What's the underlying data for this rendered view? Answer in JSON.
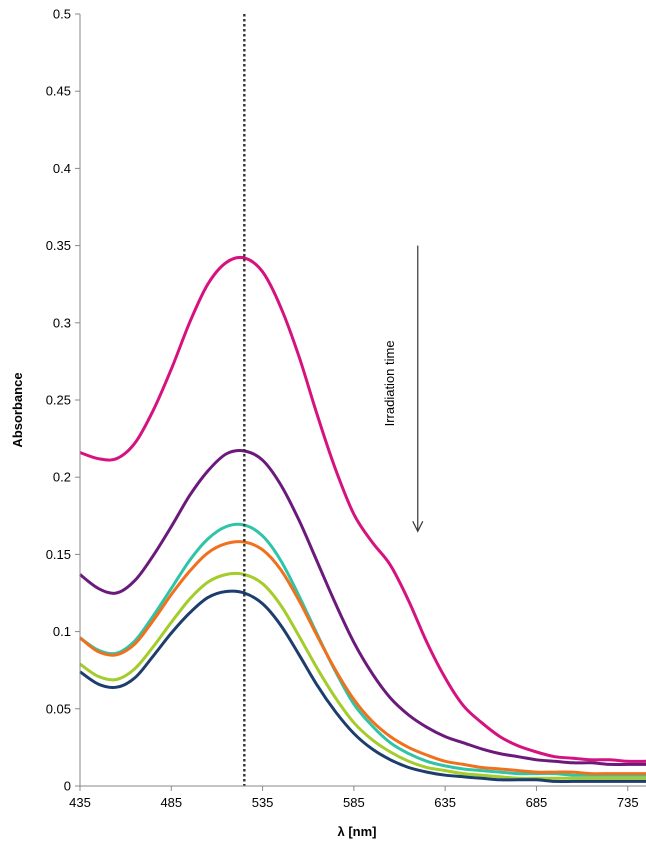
{
  "chart_data": {
    "type": "line",
    "xlabel": "λ [nm]",
    "ylabel": "Absorbance",
    "xlim": [
      435,
      745
    ],
    "ylim": [
      0,
      0.5
    ],
    "x_ticks": [
      435,
      485,
      535,
      585,
      635,
      685,
      735
    ],
    "x_tick_labels": [
      "435",
      "485",
      "535",
      "585",
      "635",
      "685",
      "735"
    ],
    "y_ticks": [
      0,
      0.05,
      0.1,
      0.15,
      0.2,
      0.25,
      0.3,
      0.35,
      0.4,
      0.45,
      0.5
    ],
    "y_tick_labels": [
      "0",
      "0.05",
      "0.1",
      "0.15",
      "0.2",
      "0.25",
      "0.3",
      "0.35",
      "0.4",
      "0.45",
      "0.5"
    ],
    "grid": false,
    "legend": "none",
    "reference_line": {
      "x": 525,
      "style": "dotted",
      "color": "#333333"
    },
    "annotation": {
      "text": "Irradiation time",
      "arrow": {
        "x": 620,
        "y_from": 0.35,
        "y_to": 0.165
      }
    },
    "x": [
      435,
      445,
      455,
      465,
      475,
      485,
      495,
      505,
      515,
      525,
      535,
      545,
      555,
      565,
      575,
      585,
      595,
      605,
      615,
      625,
      635,
      645,
      655,
      665,
      675,
      685,
      695,
      705,
      715,
      725,
      735,
      745
    ],
    "series": [
      {
        "color": "#d6127f",
        "values": [
          0.216,
          0.212,
          0.212,
          0.222,
          0.243,
          0.27,
          0.3,
          0.325,
          0.339,
          0.342,
          0.333,
          0.31,
          0.278,
          0.24,
          0.205,
          0.176,
          0.158,
          0.143,
          0.12,
          0.093,
          0.07,
          0.052,
          0.041,
          0.032,
          0.026,
          0.022,
          0.019,
          0.018,
          0.017,
          0.017,
          0.016,
          0.016
        ]
      },
      {
        "color": "#6b1a7c",
        "values": [
          0.137,
          0.128,
          0.125,
          0.133,
          0.149,
          0.168,
          0.188,
          0.204,
          0.215,
          0.217,
          0.211,
          0.195,
          0.172,
          0.145,
          0.118,
          0.093,
          0.073,
          0.057,
          0.046,
          0.038,
          0.032,
          0.028,
          0.024,
          0.021,
          0.019,
          0.017,
          0.016,
          0.015,
          0.015,
          0.014,
          0.014,
          0.014
        ]
      },
      {
        "color": "#2ec4a8",
        "values": [
          0.096,
          0.088,
          0.086,
          0.094,
          0.11,
          0.128,
          0.146,
          0.16,
          0.168,
          0.169,
          0.162,
          0.146,
          0.123,
          0.098,
          0.074,
          0.053,
          0.039,
          0.028,
          0.021,
          0.016,
          0.013,
          0.011,
          0.01,
          0.009,
          0.008,
          0.008,
          0.008,
          0.007,
          0.007,
          0.007,
          0.007,
          0.007
        ]
      },
      {
        "color": "#f0701e",
        "values": [
          0.096,
          0.087,
          0.085,
          0.092,
          0.107,
          0.124,
          0.139,
          0.151,
          0.157,
          0.158,
          0.153,
          0.14,
          0.12,
          0.097,
          0.075,
          0.056,
          0.042,
          0.032,
          0.025,
          0.02,
          0.016,
          0.014,
          0.012,
          0.011,
          0.01,
          0.009,
          0.009,
          0.009,
          0.008,
          0.008,
          0.008,
          0.008
        ]
      },
      {
        "color": "#a4cc2a",
        "values": [
          0.079,
          0.071,
          0.069,
          0.076,
          0.09,
          0.106,
          0.121,
          0.132,
          0.137,
          0.137,
          0.131,
          0.117,
          0.097,
          0.076,
          0.057,
          0.041,
          0.03,
          0.022,
          0.016,
          0.012,
          0.01,
          0.008,
          0.007,
          0.006,
          0.005,
          0.005,
          0.005,
          0.005,
          0.005,
          0.005,
          0.005,
          0.005
        ]
      },
      {
        "color": "#1d3d6e",
        "values": [
          0.074,
          0.066,
          0.064,
          0.07,
          0.084,
          0.099,
          0.112,
          0.122,
          0.126,
          0.125,
          0.118,
          0.104,
          0.085,
          0.065,
          0.048,
          0.034,
          0.024,
          0.017,
          0.012,
          0.009,
          0.007,
          0.006,
          0.005,
          0.004,
          0.004,
          0.004,
          0.003,
          0.003,
          0.003,
          0.003,
          0.003,
          0.003
        ]
      }
    ]
  }
}
